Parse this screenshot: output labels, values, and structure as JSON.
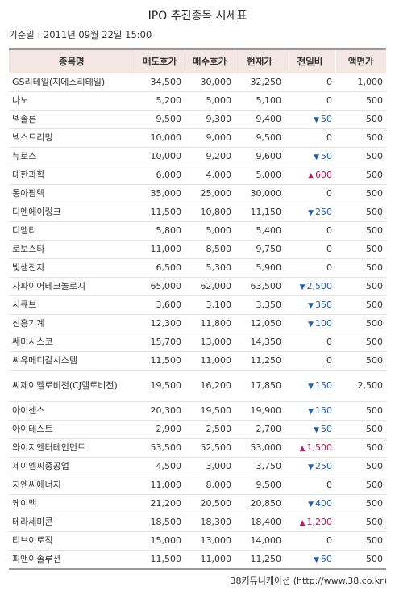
{
  "title": "IPO 추진종목 시세표",
  "base_time": "기준일 : 2011년 09월 22일 15:00",
  "columns": [
    "종목명",
    "매도호가",
    "매수호가",
    "현재가",
    "전일비",
    "액면가"
  ],
  "rows": [
    {
      "name": "GS리테일(지에스리테일)",
      "sell": "34,500",
      "buy": "30,000",
      "current": "32,250",
      "dir": "",
      "change": "0",
      "face": "1,000"
    },
    {
      "name": "나노",
      "sell": "5,200",
      "buy": "5,000",
      "current": "5,100",
      "dir": "",
      "change": "0",
      "face": "500"
    },
    {
      "name": "넥솔론",
      "sell": "9,500",
      "buy": "9,300",
      "current": "9,400",
      "dir": "down",
      "change": "50",
      "face": "500"
    },
    {
      "name": "넥스트리밍",
      "sell": "10,000",
      "buy": "9,000",
      "current": "9,500",
      "dir": "",
      "change": "0",
      "face": "500"
    },
    {
      "name": "뉴로스",
      "sell": "10,000",
      "buy": "9,200",
      "current": "9,600",
      "dir": "down",
      "change": "50",
      "face": "500"
    },
    {
      "name": "대한과학",
      "sell": "6,000",
      "buy": "4,000",
      "current": "5,000",
      "dir": "up",
      "change": "600",
      "face": "500"
    },
    {
      "name": "동아팜텍",
      "sell": "35,000",
      "buy": "25,000",
      "current": "30,000",
      "dir": "",
      "change": "0",
      "face": "500"
    },
    {
      "name": "디엔에이링크",
      "sell": "11,500",
      "buy": "10,800",
      "current": "11,150",
      "dir": "down",
      "change": "250",
      "face": "500"
    },
    {
      "name": "디엠티",
      "sell": "5,800",
      "buy": "5,000",
      "current": "5,400",
      "dir": "",
      "change": "0",
      "face": "500"
    },
    {
      "name": "로보스타",
      "sell": "11,000",
      "buy": "8,500",
      "current": "9,750",
      "dir": "",
      "change": "0",
      "face": "500"
    },
    {
      "name": "빛샘전자",
      "sell": "6,500",
      "buy": "5,300",
      "current": "5,900",
      "dir": "",
      "change": "0",
      "face": "500"
    },
    {
      "name": "사파이어테크놀로지",
      "sell": "65,000",
      "buy": "62,000",
      "current": "63,500",
      "dir": "down",
      "change": "2,500",
      "face": "500"
    },
    {
      "name": "시큐브",
      "sell": "3,600",
      "buy": "3,100",
      "current": "3,350",
      "dir": "down",
      "change": "350",
      "face": "500"
    },
    {
      "name": "신흥기계",
      "sell": "12,300",
      "buy": "11,800",
      "current": "12,050",
      "dir": "down",
      "change": "100",
      "face": "500"
    },
    {
      "name": "쎄미시스코",
      "sell": "15,700",
      "buy": "13,000",
      "current": "14,350",
      "dir": "",
      "change": "0",
      "face": "500"
    },
    {
      "name": "씨유메디칼시스템",
      "sell": "11,500",
      "buy": "11,000",
      "current": "11,250",
      "dir": "",
      "change": "0",
      "face": "500"
    },
    {
      "name": "씨제이헬로비전(CJ헬로비전)",
      "sell": "19,500",
      "buy": "16,200",
      "current": "17,850",
      "dir": "down",
      "change": "150",
      "face": "2,500",
      "wrap": true
    },
    {
      "name": "아이센스",
      "sell": "20,300",
      "buy": "19,500",
      "current": "19,900",
      "dir": "down",
      "change": "150",
      "face": "500"
    },
    {
      "name": "아이테스트",
      "sell": "2,900",
      "buy": "2,500",
      "current": "2,700",
      "dir": "down",
      "change": "50",
      "face": "500"
    },
    {
      "name": "와이지엔터테인먼트",
      "sell": "53,500",
      "buy": "52,500",
      "current": "53,000",
      "dir": "up",
      "change": "1,500",
      "face": "500"
    },
    {
      "name": "제이엠씨중공업",
      "sell": "4,500",
      "buy": "3,000",
      "current": "3,750",
      "dir": "down",
      "change": "250",
      "face": "500"
    },
    {
      "name": "지엔씨에너지",
      "sell": "11,000",
      "buy": "8,000",
      "current": "9,500",
      "dir": "",
      "change": "0",
      "face": "500"
    },
    {
      "name": "케이맥",
      "sell": "21,200",
      "buy": "20,500",
      "current": "20,850",
      "dir": "down",
      "change": "400",
      "face": "500"
    },
    {
      "name": "테라세미콘",
      "sell": "18,500",
      "buy": "18,300",
      "current": "18,400",
      "dir": "up",
      "change": "1,200",
      "face": "500"
    },
    {
      "name": "티브이로직",
      "sell": "15,000",
      "buy": "13,000",
      "current": "14,000",
      "dir": "",
      "change": "0",
      "face": "500"
    },
    {
      "name": "피앤이솔루션",
      "sell": "11,500",
      "buy": "11,000",
      "current": "11,250",
      "dir": "down",
      "change": "50",
      "face": "500"
    }
  ],
  "colors": {
    "down": "#1f5fb0",
    "up": "#b0195f",
    "header_bg": "#f3e6e3"
  },
  "source": "38커뮤니케이션 (http://www.38.co.kr)"
}
